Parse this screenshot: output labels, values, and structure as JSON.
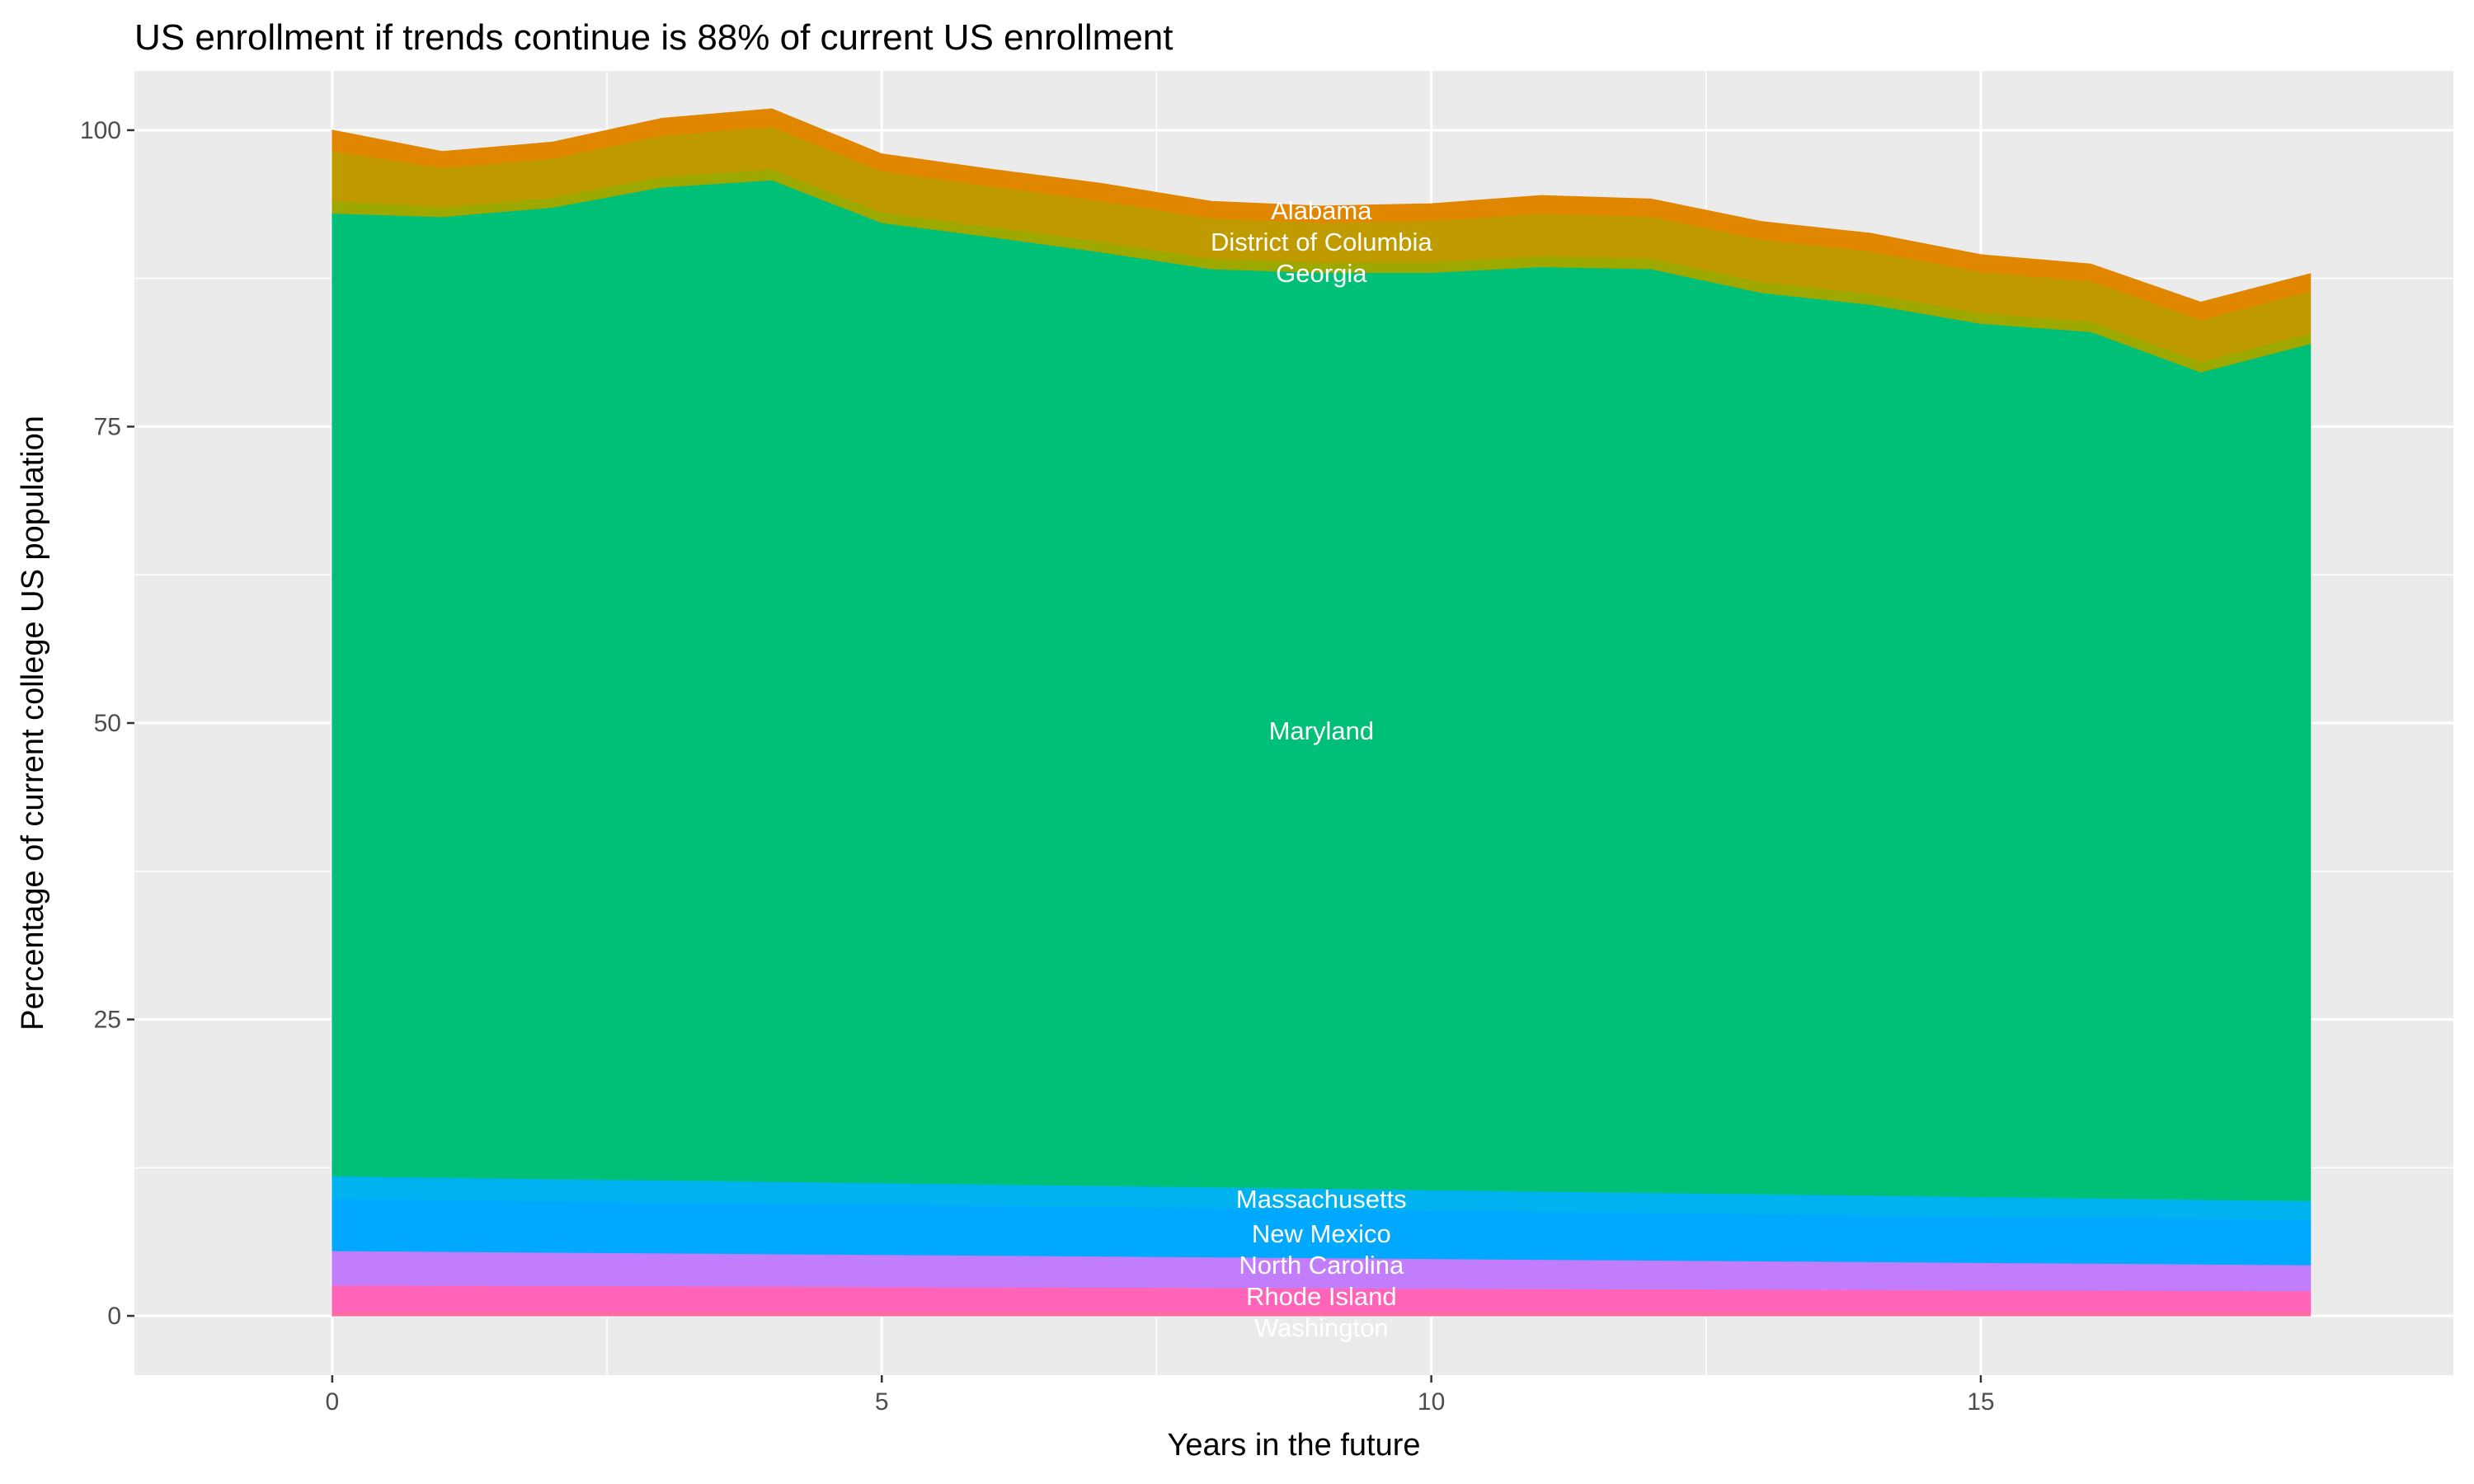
{
  "chart_data": {
    "type": "area",
    "stacked": true,
    "title": "US enrollment if trends continue is 88% of current US enrollment",
    "xlabel": "Years in the future",
    "ylabel": "Percentage of current college US population",
    "xlim": [
      -1.8,
      19.3
    ],
    "ylim": [
      -5,
      105
    ],
    "xticks": [
      0,
      5,
      10,
      15
    ],
    "yticks": [
      0,
      25,
      50,
      75,
      100
    ],
    "grid": true,
    "legend": "none",
    "x": [
      0,
      1,
      2,
      3,
      4,
      5,
      6,
      7,
      8,
      9,
      10,
      11,
      12,
      13,
      14,
      15,
      16,
      17,
      18
    ],
    "label_x": 9,
    "series": [
      {
        "name": "Washington",
        "color": "#FF6C9E",
        "values": [
          0.3,
          0.3,
          0.3,
          0.3,
          0.3,
          0.3,
          0.3,
          0.3,
          0.3,
          0.3,
          0.3,
          0.3,
          0.3,
          0.3,
          0.3,
          0.3,
          0.3,
          0.3,
          0.3
        ]
      },
      {
        "name": "Rhode Island",
        "color": "#FF64B8",
        "values": [
          2.3,
          2.27,
          2.24,
          2.22,
          2.19,
          2.16,
          2.13,
          2.11,
          2.08,
          2.05,
          2.02,
          1.99,
          1.97,
          1.94,
          1.91,
          1.88,
          1.86,
          1.83,
          1.8
        ]
      },
      {
        "name": "North Carolina",
        "color": "#C27DFC",
        "values": [
          2.9,
          2.86,
          2.82,
          2.78,
          2.74,
          2.71,
          2.67,
          2.63,
          2.59,
          2.55,
          2.51,
          2.47,
          2.43,
          2.39,
          2.36,
          2.32,
          2.28,
          2.24,
          2.2
        ]
      },
      {
        "name": "New Mexico",
        "color": "#00A9FF",
        "values": [
          4.4,
          4.37,
          4.33,
          4.3,
          4.27,
          4.23,
          4.2,
          4.17,
          4.13,
          4.1,
          4.07,
          4.03,
          4.0,
          3.97,
          3.93,
          3.9,
          3.87,
          3.83,
          3.8
        ]
      },
      {
        "name": "Massachusetts",
        "color": "#00B3F0",
        "values": [
          1.9,
          1.88,
          1.87,
          1.85,
          1.83,
          1.82,
          1.8,
          1.78,
          1.77,
          1.75,
          1.73,
          1.72,
          1.7,
          1.68,
          1.67,
          1.65,
          1.63,
          1.62,
          1.6
        ]
      },
      {
        "name": "Maryland",
        "color": "#00C078",
        "values": [
          81.2,
          81.02,
          81.93,
          83.75,
          84.47,
          80.98,
          79.9,
          78.72,
          77.43,
          77.25,
          77.37,
          77.98,
          77.9,
          76.02,
          75.13,
          73.65,
          73.07,
          69.78,
          72.3
        ]
      },
      {
        "name": "Georgia",
        "color": "#9DA800",
        "values": [
          1.05,
          0.83,
          0.83,
          0.87,
          0.9,
          0.87,
          0.86,
          0.87,
          0.86,
          0.84,
          0.87,
          0.9,
          0.89,
          0.9,
          0.9,
          0.87,
          0.86,
          0.89,
          0.89
        ]
      },
      {
        "name": "District of Columbia",
        "color": "#BF9B00",
        "values": [
          4.2,
          3.3,
          3.3,
          3.48,
          3.6,
          3.48,
          3.42,
          3.48,
          3.42,
          3.36,
          3.48,
          3.6,
          3.54,
          3.6,
          3.6,
          3.48,
          3.42,
          3.54,
          3.54
        ]
      },
      {
        "name": "Alabama",
        "color": "#E08600",
        "values": [
          1.75,
          1.37,
          1.37,
          1.45,
          1.5,
          1.45,
          1.42,
          1.45,
          1.42,
          1.4,
          1.45,
          1.5,
          1.47,
          1.5,
          1.5,
          1.45,
          1.42,
          1.47,
          1.47
        ]
      }
    ]
  }
}
